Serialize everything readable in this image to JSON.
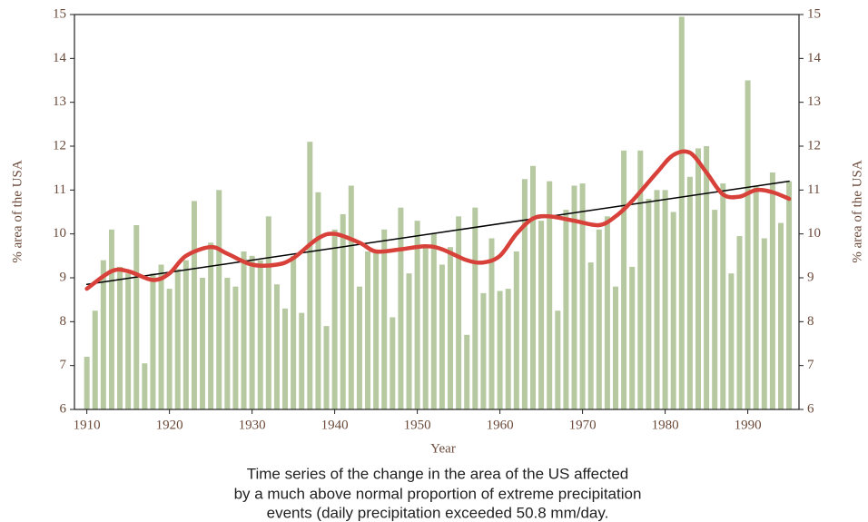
{
  "chart_data": {
    "type": "bar",
    "caption": [
      "Time series of the change in the area of the US affected",
      "by a much above normal proportion of extreme precipitation",
      "events (daily precipitation exceeded 50.8 mm/day."
    ],
    "xlabel": "Year",
    "ylabel": "% area of the USA",
    "xlim": [
      1908.5,
      1996.2
    ],
    "ylim": [
      6,
      15
    ],
    "xticks": [
      1910,
      1920,
      1930,
      1940,
      1950,
      1960,
      1970,
      1980,
      1990
    ],
    "yticks": [
      6,
      7,
      8,
      9,
      10,
      11,
      12,
      13,
      14,
      15
    ],
    "bars": {
      "color": "#b7c9a1",
      "x": [
        1910,
        1911,
        1912,
        1913,
        1914,
        1915,
        1916,
        1917,
        1918,
        1919,
        1920,
        1921,
        1922,
        1923,
        1924,
        1925,
        1926,
        1927,
        1928,
        1929,
        1930,
        1931,
        1932,
        1933,
        1934,
        1935,
        1936,
        1937,
        1938,
        1939,
        1940,
        1941,
        1942,
        1943,
        1944,
        1945,
        1946,
        1947,
        1948,
        1949,
        1950,
        1951,
        1952,
        1953,
        1954,
        1955,
        1956,
        1957,
        1958,
        1959,
        1960,
        1961,
        1962,
        1963,
        1964,
        1965,
        1966,
        1967,
        1968,
        1969,
        1970,
        1971,
        1972,
        1973,
        1974,
        1975,
        1976,
        1977,
        1978,
        1979,
        1980,
        1981,
        1982,
        1983,
        1984,
        1985,
        1986,
        1987,
        1988,
        1989,
        1990,
        1991,
        1992,
        1993,
        1994,
        1995
      ],
      "values": [
        7.2,
        8.25,
        9.4,
        10.1,
        9.25,
        9.1,
        10.2,
        7.05,
        9.1,
        9.3,
        8.75,
        9.2,
        9.4,
        10.75,
        9.0,
        9.8,
        11.0,
        9.0,
        8.8,
        9.6,
        9.5,
        9.4,
        10.4,
        8.85,
        8.3,
        9.5,
        8.2,
        12.1,
        10.95,
        7.9,
        10.1,
        10.45,
        11.1,
        8.8,
        9.6,
        9.6,
        10.1,
        8.1,
        10.6,
        9.1,
        10.3,
        9.75,
        10.0,
        9.3,
        9.7,
        10.4,
        7.7,
        10.6,
        8.65,
        9.9,
        8.7,
        8.75,
        9.6,
        11.25,
        11.55,
        10.3,
        11.2,
        8.25,
        10.55,
        11.1,
        11.15,
        9.35,
        10.1,
        10.4,
        8.8,
        11.9,
        9.25,
        11.9,
        10.8,
        11.0,
        11.0,
        10.5,
        14.95,
        11.3,
        11.95,
        12.0,
        10.55,
        11.15,
        9.1,
        9.95,
        13.5,
        11.1,
        9.9,
        11.4,
        10.25,
        11.2
      ]
    },
    "smooth": {
      "color": "#d8403a",
      "x": [
        1910,
        1913,
        1915,
        1918,
        1920,
        1922,
        1925,
        1927,
        1930,
        1933,
        1935,
        1938,
        1940,
        1943,
        1945,
        1948,
        1951,
        1953,
        1956,
        1958,
        1960,
        1962,
        1964,
        1966,
        1969,
        1972,
        1974,
        1976,
        1979,
        1981,
        1983,
        1985,
        1987,
        1989,
        1991,
        1993,
        1995
      ],
      "values": [
        8.75,
        9.15,
        9.15,
        8.95,
        9.1,
        9.5,
        9.7,
        9.55,
        9.3,
        9.3,
        9.45,
        9.9,
        10.0,
        9.8,
        9.6,
        9.65,
        9.72,
        9.65,
        9.4,
        9.35,
        9.5,
        10.0,
        10.35,
        10.4,
        10.3,
        10.2,
        10.4,
        10.75,
        11.4,
        11.8,
        11.85,
        11.4,
        10.9,
        10.85,
        11.0,
        10.95,
        10.8
      ]
    },
    "trend": {
      "color": "#000000",
      "x": [
        1910,
        1995
      ],
      "values": [
        8.85,
        11.2
      ]
    }
  }
}
